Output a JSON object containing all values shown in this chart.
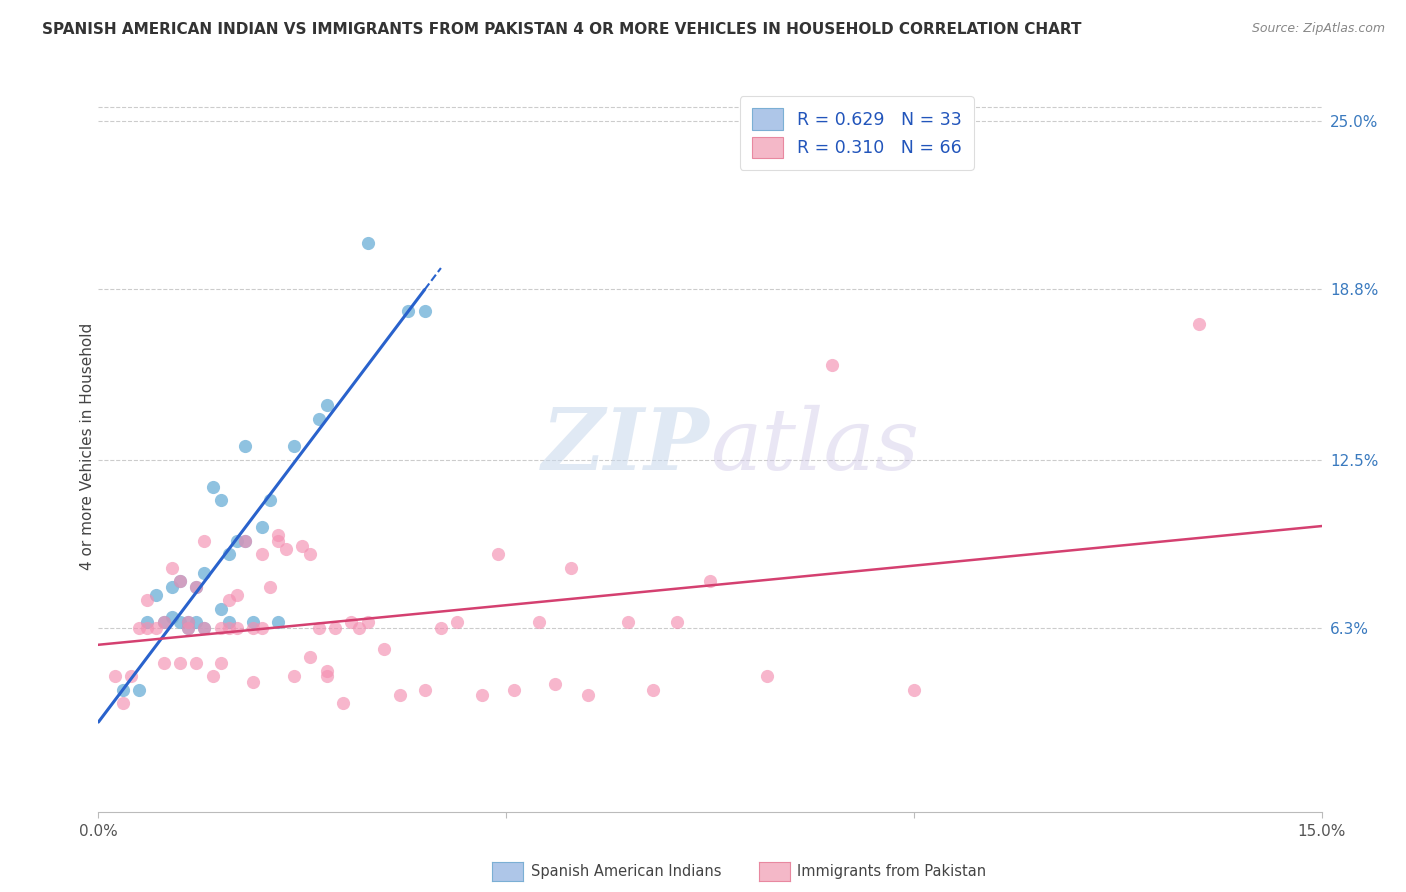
{
  "title": "SPANISH AMERICAN INDIAN VS IMMIGRANTS FROM PAKISTAN 4 OR MORE VEHICLES IN HOUSEHOLD CORRELATION CHART",
  "source": "Source: ZipAtlas.com",
  "ylabel": "4 or more Vehicles in Household",
  "x_min": 0.0,
  "x_max": 0.15,
  "y_min": -0.005,
  "y_max": 0.265,
  "x_ticks": [
    0.0,
    0.05,
    0.1,
    0.15
  ],
  "x_tick_labels": [
    "0.0%",
    "",
    "",
    "15.0%"
  ],
  "y_ticks_right": [
    0.063,
    0.125,
    0.188,
    0.25
  ],
  "y_tick_labels_right": [
    "6.3%",
    "12.5%",
    "18.8%",
    "25.0%"
  ],
  "legend_entries": [
    {
      "label": "R = 0.629   N = 33",
      "facecolor": "#aec6e8",
      "edgecolor": "#7bafd4"
    },
    {
      "label": "R = 0.310   N = 66",
      "facecolor": "#f4b8c8",
      "edgecolor": "#e888a0"
    }
  ],
  "blue_color": "#6aaed6",
  "pink_color": "#f48fb1",
  "blue_line_color": "#2962cc",
  "pink_line_color": "#d44070",
  "watermark_zip": "ZIP",
  "watermark_atlas": "atlas",
  "blue_scatter_x": [
    0.003,
    0.005,
    0.006,
    0.007,
    0.008,
    0.009,
    0.009,
    0.01,
    0.01,
    0.011,
    0.011,
    0.012,
    0.012,
    0.013,
    0.013,
    0.014,
    0.015,
    0.015,
    0.016,
    0.016,
    0.017,
    0.018,
    0.018,
    0.019,
    0.02,
    0.021,
    0.022,
    0.024,
    0.027,
    0.028,
    0.033,
    0.038,
    0.04
  ],
  "blue_scatter_y": [
    0.04,
    0.04,
    0.065,
    0.075,
    0.065,
    0.067,
    0.078,
    0.065,
    0.08,
    0.063,
    0.065,
    0.065,
    0.078,
    0.063,
    0.083,
    0.115,
    0.07,
    0.11,
    0.065,
    0.09,
    0.095,
    0.095,
    0.13,
    0.065,
    0.1,
    0.11,
    0.065,
    0.13,
    0.14,
    0.145,
    0.205,
    0.18,
    0.18
  ],
  "pink_scatter_x": [
    0.002,
    0.003,
    0.004,
    0.005,
    0.006,
    0.006,
    0.007,
    0.008,
    0.008,
    0.009,
    0.01,
    0.01,
    0.011,
    0.011,
    0.012,
    0.012,
    0.013,
    0.013,
    0.014,
    0.015,
    0.015,
    0.016,
    0.016,
    0.017,
    0.017,
    0.018,
    0.019,
    0.019,
    0.02,
    0.02,
    0.021,
    0.022,
    0.022,
    0.023,
    0.024,
    0.025,
    0.026,
    0.026,
    0.027,
    0.028,
    0.028,
    0.029,
    0.03,
    0.031,
    0.032,
    0.033,
    0.035,
    0.037,
    0.04,
    0.042,
    0.044,
    0.047,
    0.049,
    0.051,
    0.054,
    0.056,
    0.058,
    0.06,
    0.065,
    0.068,
    0.071,
    0.075,
    0.082,
    0.09,
    0.1,
    0.135
  ],
  "pink_scatter_y": [
    0.045,
    0.035,
    0.045,
    0.063,
    0.063,
    0.073,
    0.063,
    0.05,
    0.065,
    0.085,
    0.05,
    0.08,
    0.063,
    0.065,
    0.05,
    0.078,
    0.063,
    0.095,
    0.045,
    0.05,
    0.063,
    0.063,
    0.073,
    0.063,
    0.075,
    0.095,
    0.043,
    0.063,
    0.063,
    0.09,
    0.078,
    0.095,
    0.097,
    0.092,
    0.045,
    0.093,
    0.09,
    0.052,
    0.063,
    0.045,
    0.047,
    0.063,
    0.035,
    0.065,
    0.063,
    0.065,
    0.055,
    0.038,
    0.04,
    0.063,
    0.065,
    0.038,
    0.09,
    0.04,
    0.065,
    0.042,
    0.085,
    0.038,
    0.065,
    0.04,
    0.065,
    0.08,
    0.045,
    0.16,
    0.04,
    0.175
  ]
}
